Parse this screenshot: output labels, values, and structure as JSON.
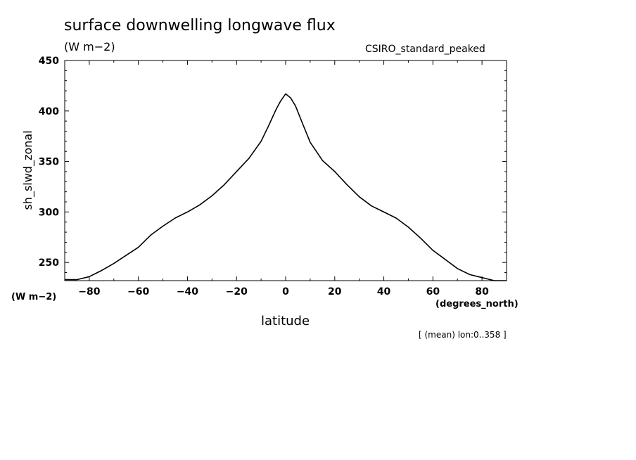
{
  "title": "surface downwelling longwave flux",
  "units_top": "(W m−2)",
  "dataset": "CSIRO_standard_peaked",
  "units_left": "(W m−2)",
  "x_units": "(degrees_north)",
  "footnote": "[ (mean) lon:0..358 ]",
  "chart_data": {
    "type": "line",
    "title": "surface downwelling longwave flux",
    "xlabel": "latitude",
    "ylabel": "sh_slwd_zonal",
    "xlim": [
      -90,
      90
    ],
    "ylim": [
      232,
      450
    ],
    "x_ticks": [
      -80,
      -60,
      -40,
      -20,
      0,
      20,
      40,
      60,
      80
    ],
    "x_tick_labels": [
      "−80",
      "−60",
      "−40",
      "−20",
      "0",
      "20",
      "40",
      "60",
      "80"
    ],
    "y_ticks": [
      250,
      300,
      350,
      400,
      450
    ],
    "y_tick_labels": [
      "250",
      "300",
      "350",
      "400",
      "450"
    ],
    "grid": false,
    "line_color": "#000000",
    "series": [
      {
        "x": [
          -90,
          -85,
          -80,
          -75,
          -70,
          -65,
          -60,
          -55,
          -50,
          -45,
          -40,
          -35,
          -30,
          -25,
          -20,
          -15,
          -10,
          -7,
          -4,
          -2,
          0,
          2,
          4,
          7,
          10,
          15,
          20,
          25,
          30,
          35,
          40,
          45,
          50,
          55,
          60,
          65,
          70,
          75,
          80,
          85,
          90
        ],
        "y": [
          233,
          233,
          236,
          242,
          249,
          257,
          265,
          277,
          286,
          294,
          300,
          307,
          316,
          327,
          340,
          353,
          370,
          385,
          401,
          410,
          417,
          413,
          405,
          387,
          369,
          351,
          340,
          327,
          315,
          306,
          300,
          294,
          285,
          274,
          262,
          253,
          244,
          238,
          235,
          232,
          232
        ]
      }
    ]
  }
}
